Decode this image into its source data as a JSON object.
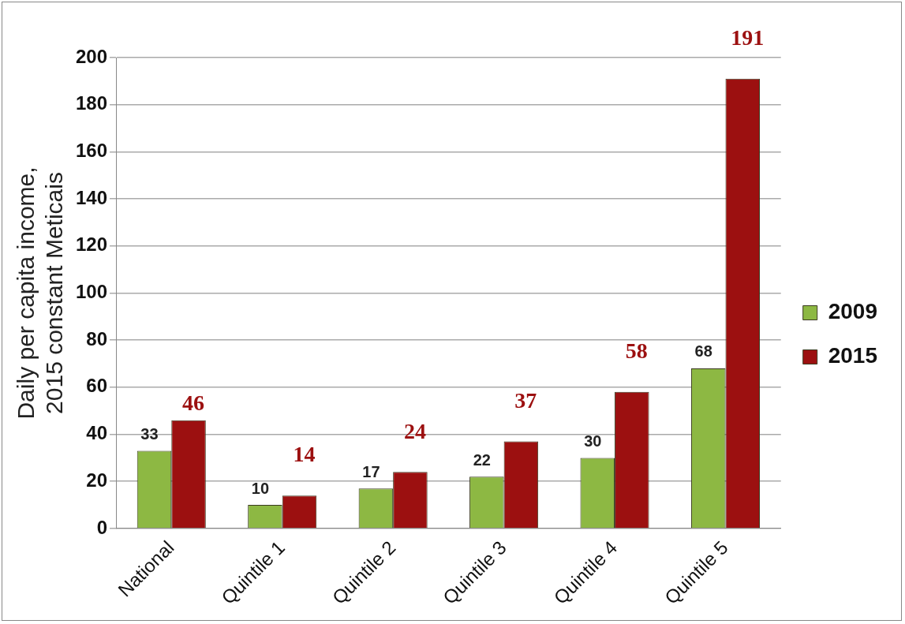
{
  "chart_data": {
    "type": "bar",
    "ylabel": "Daily per capita income, 2015 constant Meticais",
    "categories": [
      "National",
      "Quintile 1",
      "Quintile 2",
      "Quintile 3",
      "Quintile 4",
      "Quintile 5"
    ],
    "series": [
      {
        "name": "2009",
        "color": "#8db843",
        "values": [
          33,
          10,
          17,
          22,
          30,
          68
        ]
      },
      {
        "name": "2015",
        "color": "#9c1010",
        "values": [
          46,
          14,
          24,
          37,
          58,
          191
        ]
      }
    ],
    "ylim": [
      0,
      200
    ],
    "yticks": [
      0,
      20,
      40,
      60,
      80,
      100,
      120,
      140,
      160,
      180,
      200
    ],
    "grid": "y",
    "legend": "right",
    "data_labels": true
  }
}
